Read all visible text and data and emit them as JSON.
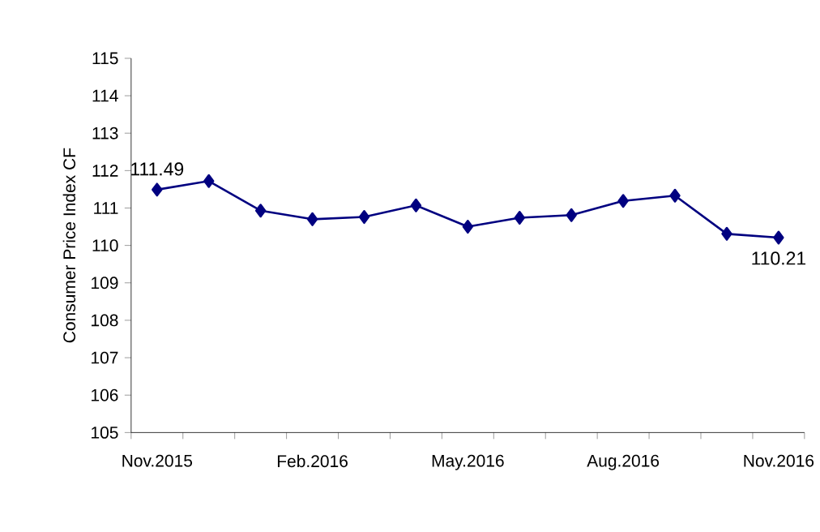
{
  "chart_data": {
    "type": "line",
    "categories": [
      "Nov.2015",
      null,
      null,
      "Feb.2016",
      null,
      null,
      "May.2016",
      null,
      null,
      "Aug.2016",
      null,
      null,
      "Nov.2016"
    ],
    "series": [
      {
        "color": "#000080",
        "values": [
          111.49,
          111.72,
          110.93,
          110.7,
          110.76,
          111.07,
          110.5,
          110.74,
          110.81,
          111.19,
          111.33,
          110.31,
          110.21
        ],
        "value_labels": [
          "111.49",
          null,
          null,
          null,
          null,
          null,
          null,
          null,
          null,
          null,
          null,
          null,
          "110.21"
        ]
      }
    ],
    "ylabel": "Consumer Price Index CF",
    "ylim": [
      105,
      115
    ],
    "yticks": [
      105,
      106,
      107,
      108,
      109,
      110,
      111,
      112,
      113,
      114,
      115
    ],
    "marker": "diamond",
    "line_style": "solid"
  }
}
